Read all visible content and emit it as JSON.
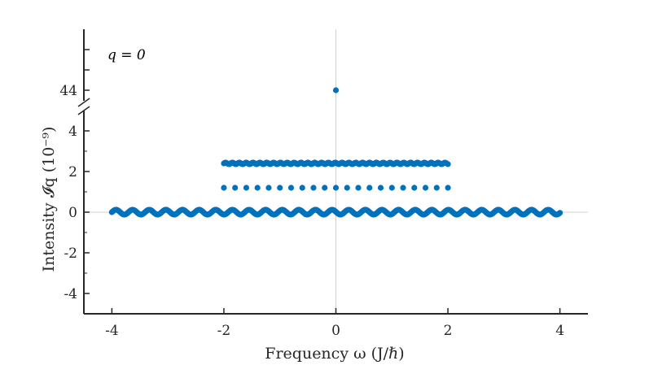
{
  "chart_data": {
    "type": "scatter",
    "xlabel": "Frequency ω (J/ℏ)",
    "ylabel": "Intensity 𝓘q (10⁻⁹)",
    "annotation": "q = 0",
    "xlim": [
      -4.5,
      4.5
    ],
    "ylim": [
      -5,
      5
    ],
    "ylim_upper_segment": [
      42.5,
      47
    ],
    "x_ticks": [
      -4,
      -2,
      0,
      2,
      4
    ],
    "x_tick_labels": [
      "-4",
      "-2",
      "0",
      "2",
      "4"
    ],
    "y_ticks_lower": [
      -4,
      -2,
      0,
      2,
      4
    ],
    "y_tick_labels_lower": [
      "-4",
      "-2",
      "0",
      "2",
      "4"
    ],
    "y_ticks_upper": [
      44
    ],
    "y_tick_labels_upper": [
      "44"
    ],
    "grid": false,
    "reference_lines": {
      "x": 0,
      "y": 0
    },
    "axis_break": true,
    "marker_color": "#0072BD",
    "reference_line_color": "#d0d0d0",
    "series": [
      {
        "x_range": [
          -4,
          4
        ],
        "y": 0,
        "description_points": "dense band of points along y≈0 from ω=-4 to ω=4"
      },
      {
        "x_range": [
          -2,
          2
        ],
        "y": 2.4,
        "description_points": "dense band of points at y≈2.4 from ω=-2 to ω=2"
      },
      {
        "x": [
          -2.0,
          -1.8,
          -1.6,
          -1.4,
          -1.2,
          -1.0,
          -0.8,
          -0.6,
          -0.4,
          -0.2,
          0.0,
          0.2,
          0.4,
          0.6,
          0.8,
          1.0,
          1.2,
          1.4,
          1.6,
          1.8,
          2.0
        ],
        "y": 1.2
      },
      {
        "x": [
          0
        ],
        "y": [
          44
        ]
      }
    ]
  }
}
